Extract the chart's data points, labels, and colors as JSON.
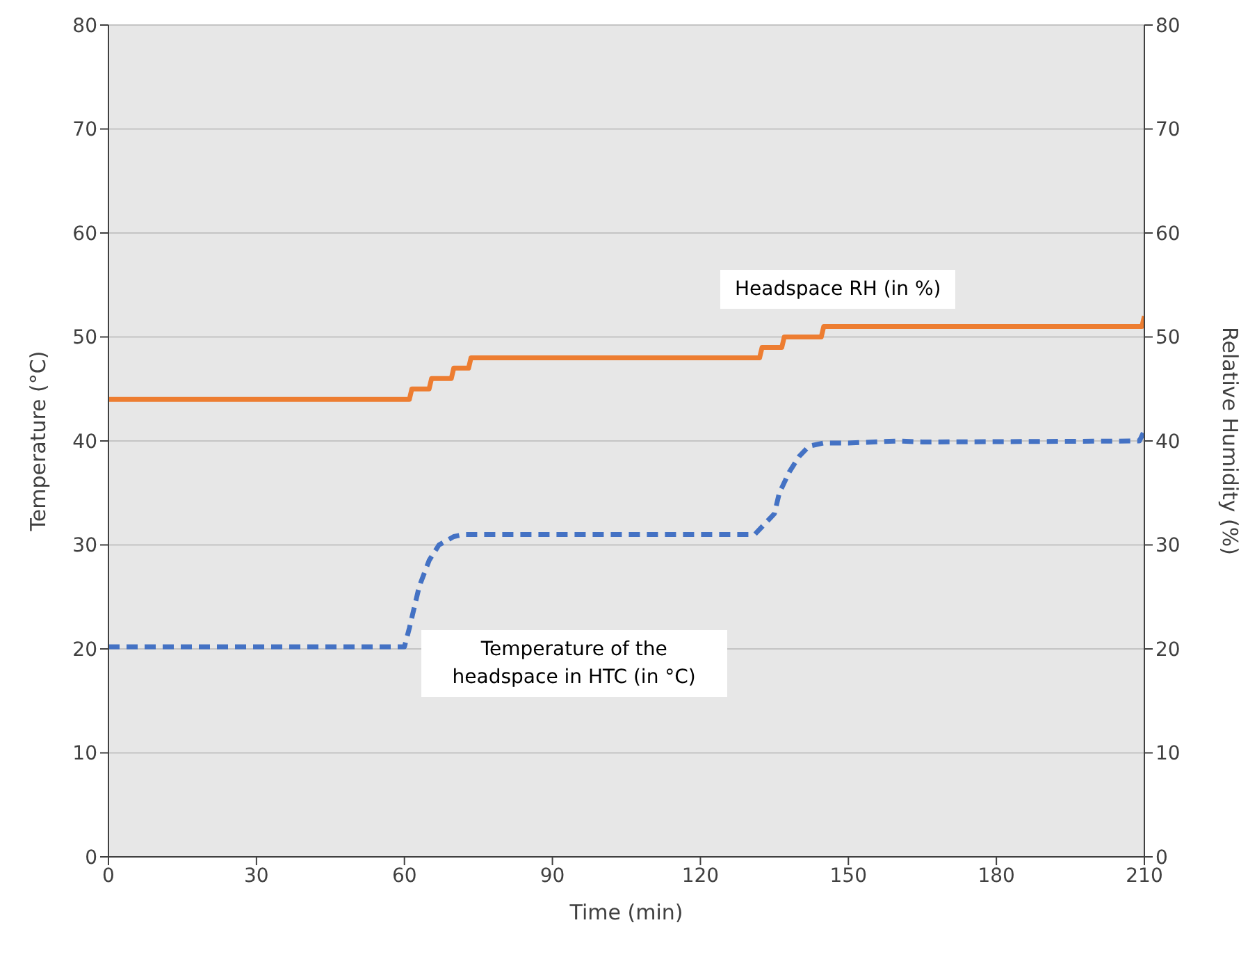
{
  "chart_data": {
    "type": "line",
    "xlabel": "Time (min)",
    "ylabel": "Temperature (°C)",
    "y2label": "Relative Humidity (%)",
    "xlim": [
      0,
      210
    ],
    "xticks": [
      0,
      30,
      60,
      90,
      120,
      150,
      180,
      210
    ],
    "ylim": [
      0,
      80
    ],
    "yticks": [
      0,
      10,
      20,
      30,
      40,
      50,
      60,
      70,
      80
    ],
    "y2lim": [
      0,
      80
    ],
    "y2ticks": [
      0,
      10,
      20,
      30,
      40,
      50,
      60,
      70,
      80
    ],
    "grid": "y",
    "legend": false,
    "marker": "none",
    "series": [
      {
        "name": "Headspace RH (in %)",
        "color": "#ed7d31",
        "line_style": "solid",
        "x": [
          0,
          61,
          61.5,
          65,
          65.5,
          69.5,
          70,
          73,
          73.5,
          132,
          132.5,
          136.5,
          137,
          144.5,
          145,
          209.5,
          210
        ],
        "values": [
          44,
          44,
          45,
          45,
          46,
          46,
          47,
          47,
          48,
          48,
          49,
          49,
          50,
          50,
          51,
          51,
          52
        ]
      },
      {
        "name": "Temperature of the headspace in HTC (in °C)",
        "color": "#4472c4",
        "line_style": "dashed",
        "x": [
          0,
          60,
          61,
          62,
          63,
          65,
          67,
          70,
          72,
          131,
          133,
          135,
          136,
          138,
          140,
          142,
          145,
          150,
          160,
          165,
          209,
          210
        ],
        "values": [
          20.2,
          20.2,
          22,
          24,
          26,
          28.5,
          30,
          30.8,
          31,
          31,
          32,
          33,
          35,
          37,
          38.5,
          39.5,
          39.8,
          39.8,
          40,
          39.9,
          40,
          41
        ]
      }
    ]
  }
}
